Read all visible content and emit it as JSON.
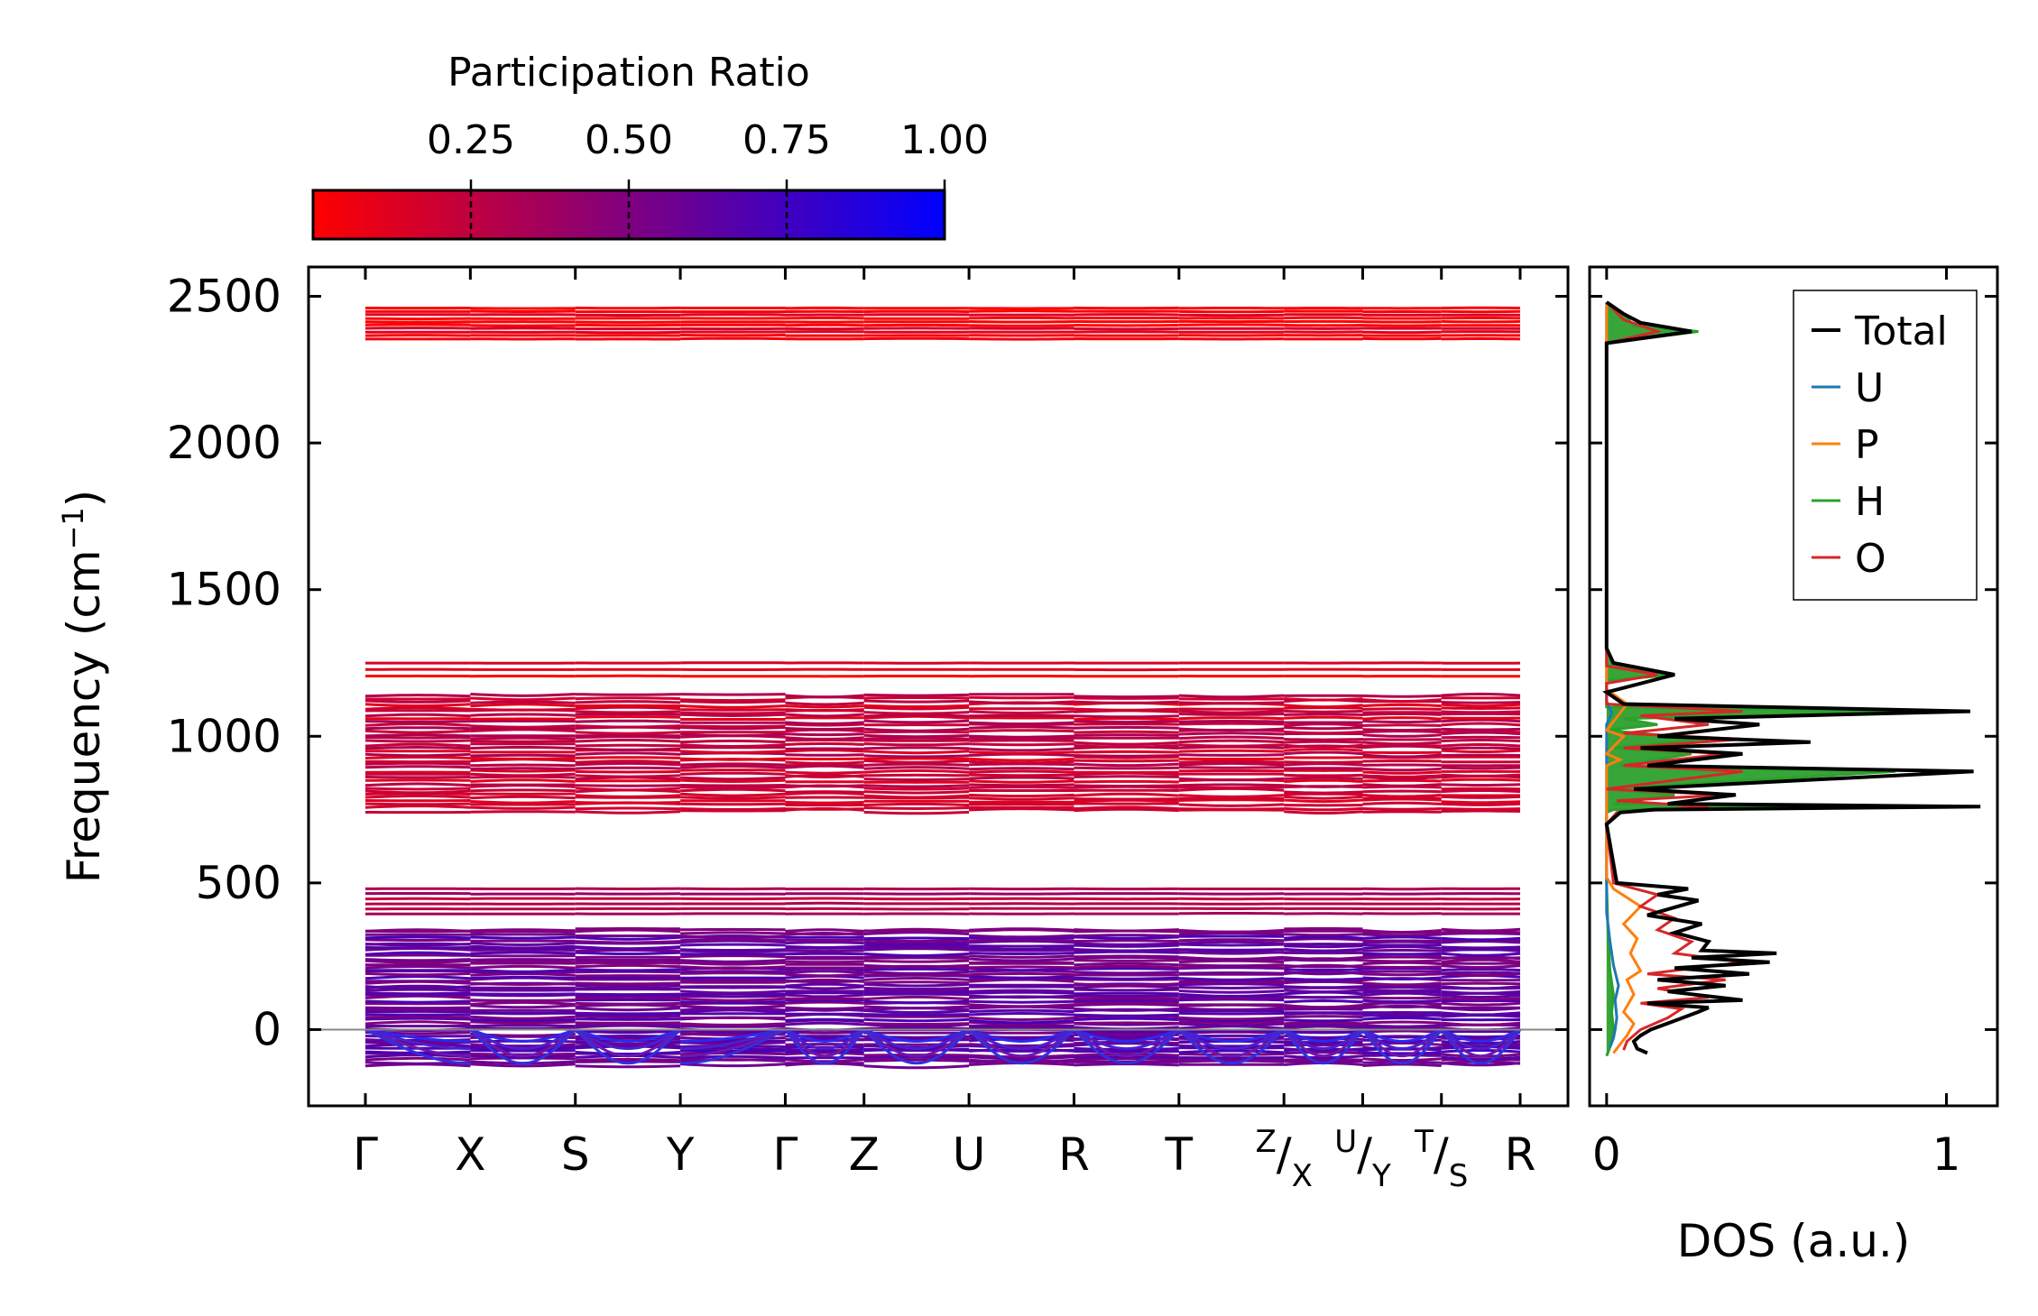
{
  "chart_data": [
    {
      "type": "line",
      "subtype": "phonon-band-structure",
      "ylabel": "Frequency (cm",
      "ylabel_sup": "−1",
      "ylabel_close": ")",
      "ylim": [
        -260,
        2600
      ],
      "yticks": [
        0,
        500,
        1000,
        1500,
        2000,
        2500
      ],
      "kpoints": [
        {
          "label": "Γ",
          "pos": 0.0
        },
        {
          "label": "X",
          "pos": 1.0
        },
        {
          "label": "S",
          "pos": 2.0
        },
        {
          "label": "Y",
          "pos": 3.0
        },
        {
          "label": "Γ",
          "pos": 4.0
        },
        {
          "label": "Z",
          "pos": 4.75
        },
        {
          "label": "U",
          "pos": 5.75
        },
        {
          "label": "R",
          "pos": 6.75
        },
        {
          "label": "T",
          "pos": 7.75
        },
        {
          "label": "Z|X",
          "pos": 8.75,
          "sup": "Z",
          "base": "X"
        },
        {
          "label": "U|Y",
          "pos": 9.5,
          "sup": "U",
          "base": "Y"
        },
        {
          "label": "T|S",
          "pos": 10.25,
          "sup": "T",
          "base": "S"
        },
        {
          "label": "R",
          "pos": 11.0
        }
      ],
      "zero_line": 0,
      "colorbar": {
        "title": "Participation Ratio",
        "range": [
          0.0,
          1.0
        ],
        "ticks": [
          "0.25",
          "0.50",
          "0.75",
          "1.00"
        ],
        "tick_values": [
          0.25,
          0.5,
          0.75,
          1.0
        ],
        "color_low": "#ff0000",
        "color_high": "#0000ff"
      },
      "band_groups": [
        {
          "range": [
            2355,
            2460
          ],
          "count": 10,
          "pr": 0.05
        },
        {
          "range": [
            1205,
            1250
          ],
          "count": 3,
          "pr": 0.06
        },
        {
          "range": [
            745,
            1140
          ],
          "count": 36,
          "pr": 0.22
        },
        {
          "range": [
            395,
            480
          ],
          "count": 6,
          "pr": 0.3
        },
        {
          "range": [
            -120,
            340
          ],
          "count": 52,
          "pr": 0.6
        }
      ]
    },
    {
      "type": "line",
      "subtype": "density-of-states",
      "xlabel": "DOS (a.u.)",
      "xlim": [
        -0.05,
        1.15
      ],
      "xticks": [
        0,
        1
      ],
      "ylim": [
        -260,
        2600
      ],
      "series": [
        {
          "name": "Total",
          "color": "#000000",
          "points": [
            [
              0.12,
              -80
            ],
            [
              0.09,
              -65
            ],
            [
              0.08,
              -40
            ],
            [
              0.1,
              -20
            ],
            [
              0.13,
              0
            ],
            [
              0.2,
              30
            ],
            [
              0.27,
              60
            ],
            [
              0.3,
              75
            ],
            [
              0.12,
              90
            ],
            [
              0.4,
              100
            ],
            [
              0.18,
              130
            ],
            [
              0.35,
              150
            ],
            [
              0.15,
              170
            ],
            [
              0.42,
              190
            ],
            [
              0.2,
              210
            ],
            [
              0.48,
              230
            ],
            [
              0.25,
              245
            ],
            [
              0.5,
              260
            ],
            [
              0.28,
              270
            ],
            [
              0.3,
              300
            ],
            [
              0.2,
              330
            ],
            [
              0.28,
              360
            ],
            [
              0.12,
              390
            ],
            [
              0.27,
              440
            ],
            [
              0.15,
              460
            ],
            [
              0.24,
              480
            ],
            [
              0.03,
              500
            ],
            [
              0.0,
              700
            ],
            [
              0.04,
              740
            ],
            [
              0.14,
              750
            ],
            [
              1.1,
              760
            ],
            [
              0.18,
              770
            ],
            [
              0.38,
              800
            ],
            [
              0.08,
              820
            ],
            [
              1.08,
              880
            ],
            [
              0.12,
              900
            ],
            [
              0.4,
              940
            ],
            [
              0.1,
              960
            ],
            [
              0.6,
              980
            ],
            [
              0.15,
              1000
            ],
            [
              0.45,
              1040
            ],
            [
              0.2,
              1060
            ],
            [
              1.07,
              1085
            ],
            [
              0.05,
              1110
            ],
            [
              0.0,
              1150
            ],
            [
              0.2,
              1210
            ],
            [
              0.02,
              1250
            ],
            [
              0.0,
              1300
            ],
            [
              0.0,
              2340
            ],
            [
              0.25,
              2380
            ],
            [
              0.1,
              2410
            ],
            [
              0.05,
              2440
            ],
            [
              0.0,
              2480
            ]
          ]
        },
        {
          "name": "U",
          "color": "#1f77b4",
          "points": [
            [
              0.01,
              -60
            ],
            [
              0.02,
              -30
            ],
            [
              0.025,
              0
            ],
            [
              0.03,
              40
            ],
            [
              0.025,
              100
            ],
            [
              0.035,
              150
            ],
            [
              0.02,
              220
            ],
            [
              0.01,
              300
            ],
            [
              0.0,
              400
            ],
            [
              0.0,
              1040
            ],
            [
              0.015,
              1080
            ],
            [
              0.0,
              1120
            ],
            [
              0.0,
              2480
            ]
          ]
        },
        {
          "name": "P",
          "color": "#ff7f0e",
          "points": [
            [
              0.02,
              -80
            ],
            [
              0.04,
              -50
            ],
            [
              0.06,
              -20
            ],
            [
              0.08,
              20
            ],
            [
              0.05,
              60
            ],
            [
              0.08,
              120
            ],
            [
              0.06,
              170
            ],
            [
              0.1,
              200
            ],
            [
              0.07,
              260
            ],
            [
              0.09,
              310
            ],
            [
              0.05,
              360
            ],
            [
              0.1,
              420
            ],
            [
              0.02,
              480
            ],
            [
              0.0,
              520
            ],
            [
              0.0,
              900
            ],
            [
              0.04,
              920
            ],
            [
              0.0,
              940
            ],
            [
              0.05,
              1000
            ],
            [
              0.0,
              1020
            ],
            [
              0.06,
              1110
            ],
            [
              0.0,
              1160
            ],
            [
              0.0,
              2480
            ]
          ]
        },
        {
          "name": "H",
          "color": "#2ca02c",
          "fill": true,
          "points": [
            [
              0.0,
              -90
            ],
            [
              0.01,
              -60
            ],
            [
              0.02,
              0
            ],
            [
              0.015,
              60
            ],
            [
              0.02,
              120
            ],
            [
              0.01,
              200
            ],
            [
              0.005,
              300
            ],
            [
              0.0,
              500
            ],
            [
              0.0,
              740
            ],
            [
              0.02,
              750
            ],
            [
              0.76,
              760
            ],
            [
              0.02,
              770
            ],
            [
              0.2,
              800
            ],
            [
              0.0,
              820
            ],
            [
              0.85,
              880
            ],
            [
              0.04,
              900
            ],
            [
              0.25,
              940
            ],
            [
              0.02,
              960
            ],
            [
              0.3,
              990
            ],
            [
              0.0,
              1020
            ],
            [
              0.15,
              1040
            ],
            [
              0.05,
              1060
            ],
            [
              0.85,
              1085
            ],
            [
              0.0,
              1100
            ],
            [
              0.0,
              1190
            ],
            [
              0.2,
              1210
            ],
            [
              0.02,
              1240
            ],
            [
              0.0,
              1280
            ],
            [
              0.0,
              2340
            ],
            [
              0.27,
              2380
            ],
            [
              0.08,
              2400
            ],
            [
              0.05,
              2440
            ],
            [
              0.0,
              2480
            ]
          ]
        },
        {
          "name": "O",
          "color": "#d62728",
          "points": [
            [
              0.05,
              -70
            ],
            [
              0.06,
              -40
            ],
            [
              0.1,
              0
            ],
            [
              0.18,
              40
            ],
            [
              0.22,
              70
            ],
            [
              0.1,
              90
            ],
            [
              0.3,
              110
            ],
            [
              0.15,
              140
            ],
            [
              0.35,
              170
            ],
            [
              0.12,
              190
            ],
            [
              0.4,
              230
            ],
            [
              0.2,
              260
            ],
            [
              0.25,
              300
            ],
            [
              0.15,
              340
            ],
            [
              0.2,
              380
            ],
            [
              0.1,
              420
            ],
            [
              0.15,
              460
            ],
            [
              0.02,
              500
            ],
            [
              0.0,
              700
            ],
            [
              0.03,
              740
            ],
            [
              0.3,
              760
            ],
            [
              0.03,
              780
            ],
            [
              0.35,
              800
            ],
            [
              0.0,
              820
            ],
            [
              0.4,
              880
            ],
            [
              0.05,
              900
            ],
            [
              0.35,
              940
            ],
            [
              0.05,
              960
            ],
            [
              0.4,
              990
            ],
            [
              0.05,
              1010
            ],
            [
              0.3,
              1040
            ],
            [
              0.1,
              1070
            ],
            [
              0.4,
              1085
            ],
            [
              0.0,
              1110
            ],
            [
              0.0,
              1180
            ],
            [
              0.15,
              1210
            ],
            [
              0.0,
              1240
            ],
            [
              0.0,
              2340
            ],
            [
              0.15,
              2380
            ],
            [
              0.05,
              2420
            ],
            [
              0.0,
              2480
            ]
          ]
        }
      ],
      "legend": {
        "position": "top-right",
        "entries": [
          {
            "name": "Total",
            "color": "#000000"
          },
          {
            "name": "U",
            "color": "#1f77b4"
          },
          {
            "name": "P",
            "color": "#ff7f0e"
          },
          {
            "name": "H",
            "color": "#2ca02c"
          },
          {
            "name": "O",
            "color": "#d62728"
          }
        ]
      }
    }
  ]
}
